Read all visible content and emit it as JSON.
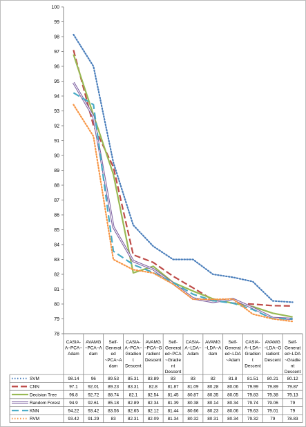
{
  "chart_data": {
    "type": "line",
    "categories": [
      "CASIA-A~PCA~Adam",
      "AVAMG~PCA~Adam",
      "Self-Generated~PCA~Adam",
      "CASIA-A~PCA~Gradient Descent",
      "AVAMG~PCA~Gradient Descent",
      "Self-Generated~PCA~Gradient Descent",
      "CASIA-A~LDA~Adam",
      "AVAMG~LDA~Adam",
      "Self-Generated~LDA~Adam",
      "CASIA-A~LDA~Gradient Descent",
      "AVAMG~LDA~Gradient Descent",
      "Self-Generated~LDA~Gradient Descent"
    ],
    "category_lines": [
      [
        "CASIA-",
        "A~PCA~",
        "Adam"
      ],
      [
        "AVAMG",
        "~PCA~A",
        "dam"
      ],
      [
        "Self-",
        "Generat",
        "ed",
        "~PCA~A",
        "dam"
      ],
      [
        "CASIA-",
        "A~PCA~",
        "Gradien",
        "t",
        "Descent"
      ],
      [
        "AVAMG",
        "~PCA~G",
        "radient",
        "Descent"
      ],
      [
        "Self-",
        "Generat",
        "ed~PCA",
        "~Gradie",
        "nt",
        "Descent"
      ],
      [
        "CASIA-",
        "A~LDA~",
        "Adam"
      ],
      [
        "AVAMG",
        "~LDA~A",
        "dam"
      ],
      [
        "Self-",
        "Generat",
        "ed~LDA",
        "~Adam"
      ],
      [
        "CASIA-",
        "A~LDA~",
        "Gradien",
        "t",
        "Descent"
      ],
      [
        "AVAMG",
        "~LDA~G",
        "radient",
        "Descent"
      ],
      [
        "Self-",
        "Generat",
        "ed~LDA",
        "~Gradie",
        "nt",
        "Descent"
      ]
    ],
    "series": [
      {
        "name": "SVM",
        "color": "#4a7ebb",
        "style": "dotted",
        "values": [
          "98.14",
          "96",
          "89.53",
          "85.31",
          "83.89",
          "83",
          "83",
          "82",
          "81.8",
          "81.51",
          "80.21",
          "80.12"
        ]
      },
      {
        "name": "CNN",
        "color": "#be4b48",
        "style": "dashed",
        "values": [
          "97.1",
          "92.01",
          "89.23",
          "83.31",
          "82.8",
          "81.87",
          "81.09",
          "80.28",
          "80.06",
          "79.99",
          "79.89",
          "79.87"
        ]
      },
      {
        "name": "Decision Tree",
        "color": "#98b954",
        "style": "solid",
        "values": [
          "96.8",
          "92.72",
          "88.74",
          "82.1",
          "82.54",
          "81.45",
          "80.87",
          "80.35",
          "80.05",
          "79.83",
          "79.38",
          "79.13"
        ]
      },
      {
        "name": "Random Forest",
        "color": "#7d60a0",
        "style": "double",
        "values": [
          "94.9",
          "92.61",
          "85.18",
          "82.89",
          "82.34",
          "81.39",
          "80.38",
          "80.14",
          "80.34",
          "79.74",
          "79.06",
          "79"
        ]
      },
      {
        "name": "KNN",
        "color": "#46aac5",
        "style": "longdash",
        "values": [
          "94.22",
          "93.42",
          "83.56",
          "82.65",
          "82.12",
          "81.44",
          "80.66",
          "80.23",
          "80.06",
          "79.63",
          "79.01",
          "79"
        ]
      },
      {
        "name": "RVM",
        "color": "#f79646",
        "style": "dotted",
        "values": [
          "93.42",
          "91.29",
          "83",
          "82.31",
          "82.09",
          "81.34",
          "80.32",
          "80.31",
          "80.34",
          "79.32",
          "79",
          "78.83"
        ]
      }
    ],
    "ylim": [
      78,
      100
    ],
    "yticks": [
      "78",
      "79",
      "80",
      "81",
      "82",
      "83",
      "84",
      "85",
      "86",
      "87",
      "88",
      "89",
      "90",
      "91",
      "92",
      "93",
      "94",
      "95",
      "96",
      "97",
      "98",
      "99",
      "100"
    ],
    "grid": false,
    "legend": "data-table"
  }
}
